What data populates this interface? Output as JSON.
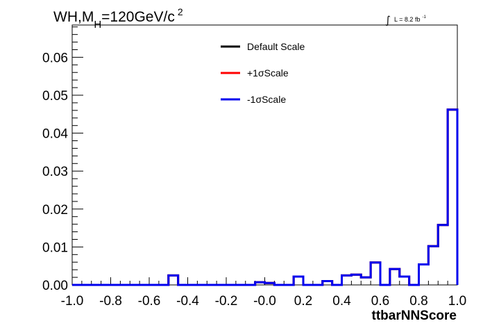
{
  "chart_data": {
    "type": "line",
    "title_main": "WH,M",
    "title_sub": "H",
    "title_rest": "=120GeV/c",
    "title_sup": "2",
    "lumi_integral": "∫",
    "lumi_text": "L = 8.2 fb",
    "lumi_sup": "-1",
    "xlabel": "ttbarNNScore",
    "ylabel": "",
    "xlim": [
      -1.0,
      1.0
    ],
    "ylim": [
      0,
      0.0685
    ],
    "x_ticks": [
      -1.0,
      -0.8,
      -0.6,
      -0.4,
      -0.2,
      0.0,
      0.2,
      0.4,
      0.6,
      0.8,
      1.0
    ],
    "x_tick_labels": [
      "-1.0",
      "-0.8",
      "-0.6",
      "-0.4",
      "-0.2",
      "-0.0",
      "0.2",
      "0.4",
      "0.6",
      "0.8",
      "1.0"
    ],
    "y_ticks": [
      0.0,
      0.01,
      0.02,
      0.03,
      0.04,
      0.05,
      0.06
    ],
    "y_tick_labels": [
      "0.00",
      "0.01",
      "0.02",
      "0.03",
      "0.04",
      "0.05",
      "0.06"
    ],
    "grid": false,
    "legend_placement": "top-center",
    "bin_edges": [
      -1.0,
      -0.95,
      -0.9,
      -0.85,
      -0.8,
      -0.75,
      -0.7,
      -0.65,
      -0.6,
      -0.55,
      -0.5,
      -0.45,
      -0.4,
      -0.35,
      -0.3,
      -0.25,
      -0.2,
      -0.15,
      -0.1,
      -0.05,
      0.0,
      0.05,
      0.1,
      0.15,
      0.2,
      0.25,
      0.3,
      0.35,
      0.4,
      0.45,
      0.5,
      0.55,
      0.6,
      0.65,
      0.7,
      0.75,
      0.8,
      0.85,
      0.9,
      0.95,
      1.0
    ],
    "series": [
      {
        "name": "Default Scale",
        "color": "#000000",
        "values": [
          0,
          0,
          0,
          0,
          0,
          0,
          0,
          0,
          0,
          0,
          0.0025,
          0,
          0,
          0,
          0,
          0,
          0,
          0,
          0,
          0.0007,
          0.0005,
          0,
          0,
          0.0022,
          0,
          0,
          0.001,
          0,
          0.0025,
          0.0027,
          0.002,
          0.0059,
          0,
          0.0042,
          0.0022,
          0,
          0.0054,
          0.0102,
          0.0158,
          0.0462
        ]
      },
      {
        "name": "+1σScale",
        "color": "#ff0000",
        "values": [
          0,
          0,
          0,
          0,
          0,
          0,
          0,
          0,
          0,
          0,
          0.0025,
          0,
          0,
          0,
          0,
          0,
          0,
          0,
          0,
          0.0007,
          0.0005,
          0,
          0,
          0.0022,
          0,
          0,
          0.001,
          0,
          0.0025,
          0.0027,
          0.002,
          0.0059,
          0,
          0.0042,
          0.0022,
          0,
          0.0054,
          0.0102,
          0.0158,
          0.0462
        ]
      },
      {
        "name": "-1σScale",
        "color": "#0000ee",
        "values": [
          0,
          0,
          0,
          0,
          0,
          0,
          0,
          0,
          0,
          0,
          0.0025,
          0,
          0,
          0,
          0,
          0,
          0,
          0,
          0,
          0.0007,
          0.0005,
          0,
          0,
          0.0022,
          0,
          0,
          0.001,
          0,
          0.0025,
          0.0027,
          0.002,
          0.0059,
          0,
          0.0042,
          0.0022,
          0,
          0.0054,
          0.0102,
          0.0158,
          0.0462
        ]
      }
    ]
  }
}
